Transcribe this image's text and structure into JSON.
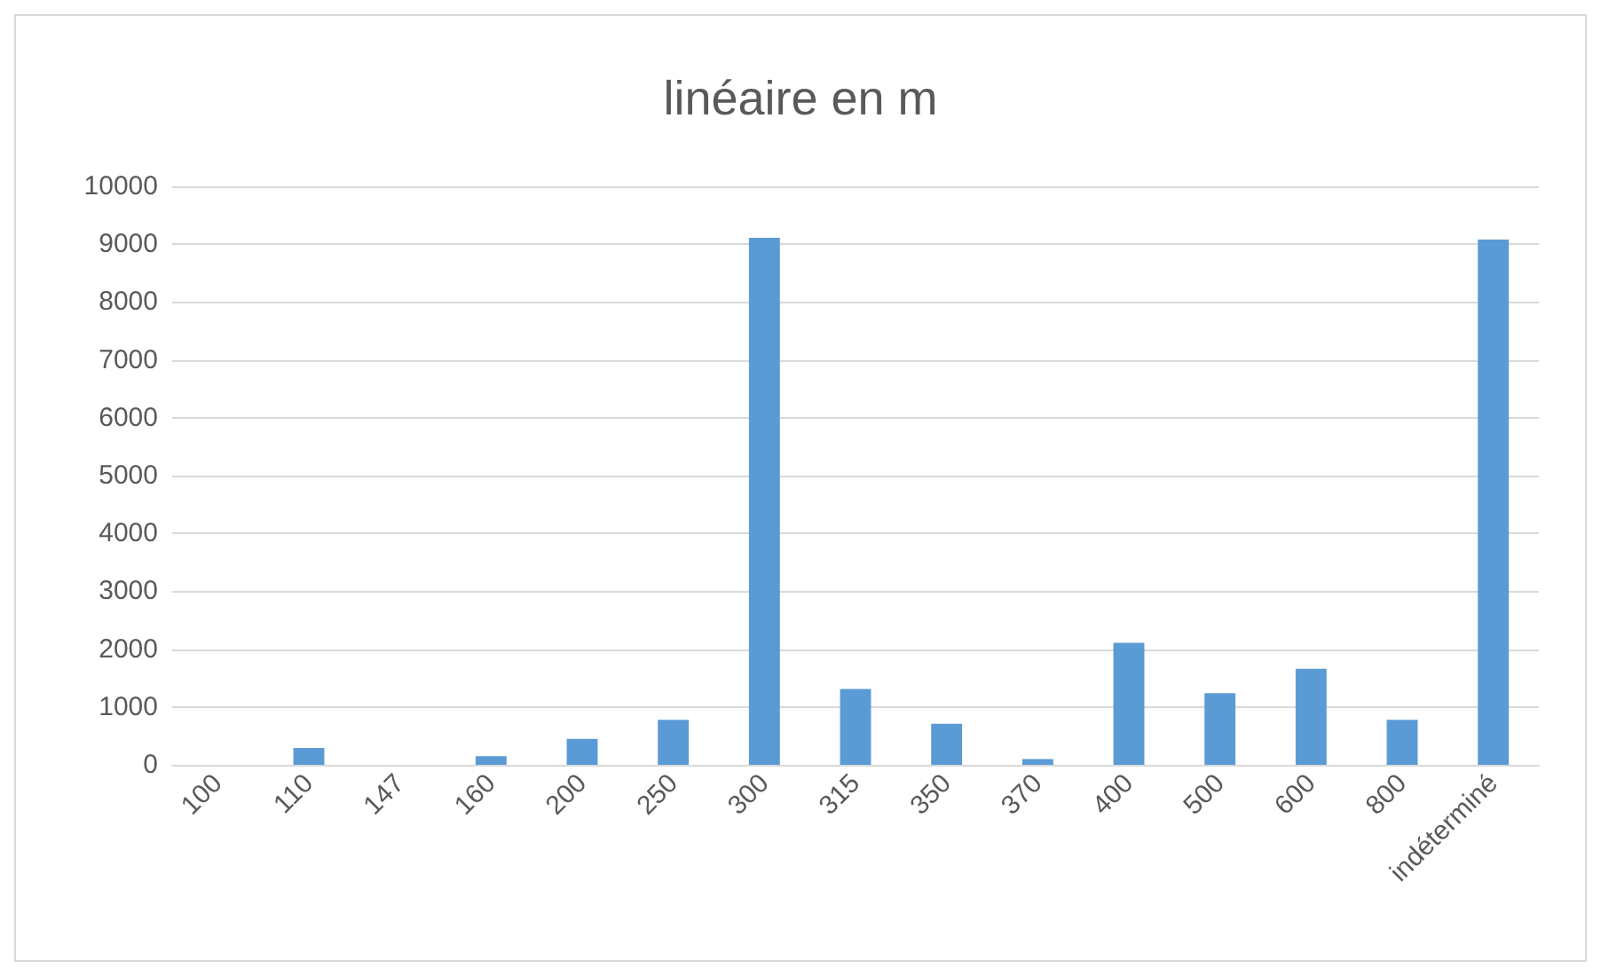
{
  "chart_data": {
    "type": "bar",
    "title": "linéaire en m",
    "categories": [
      "100",
      "110",
      "147",
      "160",
      "200",
      "250",
      "300",
      "315",
      "350",
      "370",
      "400",
      "500",
      "600",
      "800",
      "indéterminé"
    ],
    "values": [
      0,
      290,
      0,
      150,
      450,
      780,
      9110,
      1310,
      710,
      100,
      2110,
      1240,
      1660,
      780,
      9080
    ],
    "color": "#5b9bd5",
    "ylim": [
      0,
      10000
    ],
    "yticks": [
      0,
      1000,
      2000,
      3000,
      4000,
      5000,
      6000,
      7000,
      8000,
      9000,
      10000
    ],
    "grid": "y"
  }
}
